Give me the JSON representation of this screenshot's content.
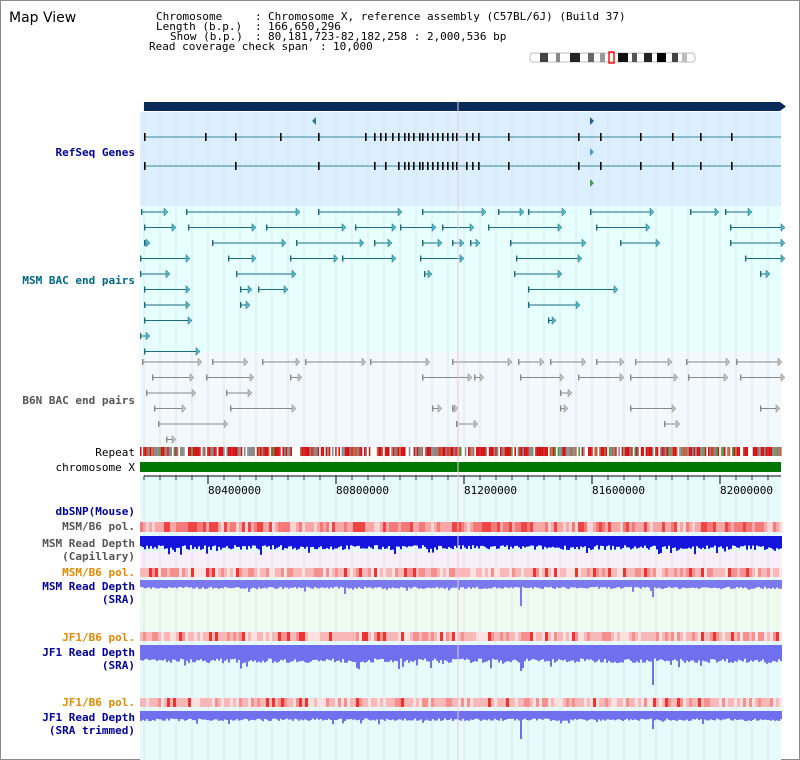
{
  "title": "Map View",
  "info": {
    "chromosome_key": "Chromosome",
    "chromosome_value": "Chromosome X, reference assembly (C57BL/6J) (Build 37)",
    "length_key": "Length (b.p.)",
    "length_value": "166,650,296",
    "show_key": "Show (b.p.)",
    "show_value": "80,181,723-82,182,258 : 2,000,536 bp",
    "coverage_key": "Read coverage check span",
    "coverage_value": "10,000"
  },
  "tracks": {
    "refseq": "RefSeq Genes",
    "msm_bac": "MSM BAC end pairs",
    "b6n_bac": "B6N BAC end pairs",
    "repeat": "Repeat",
    "chromosome": "chromosome X",
    "dbsnp": "dbSNP(Mouse)",
    "msm_b6_pol_1": "MSM/B6 pol.",
    "msm_depth_cap_1": "MSM Read Depth",
    "msm_depth_cap_2": "(Capillary)",
    "msm_b6_pol_2": "MSM/B6 pol.",
    "msm_depth_sra_1": "MSM Read Depth",
    "msm_depth_sra_2": "(SRA)",
    "jf1_b6_pol_1": "JF1/B6 pol.",
    "jf1_depth_sra_1": "JF1 Read Depth",
    "jf1_depth_sra_2": "(SRA)",
    "jf1_b6_pol_2": "JF1/B6 pol.",
    "jf1_depth_trim_1": "JF1 Read Depth",
    "jf1_depth_trim_2": "(SRA trimmed)"
  },
  "axis": {
    "ticks": [
      "80400000",
      "80800000",
      "81200000",
      "81600000",
      "82000000"
    ]
  },
  "colors": {
    "navy_bar": "#0a2a5a",
    "refseq_bg": "#dcefff",
    "bac_bg": "#e6ffff",
    "b6n_bg": "#f0f8fc",
    "gene_line": "#006677",
    "chromosome_bar": "#007700",
    "depth_blue": "#1111dd",
    "sra_blue": "#7777ee",
    "pol_red": "#f06060"
  }
}
